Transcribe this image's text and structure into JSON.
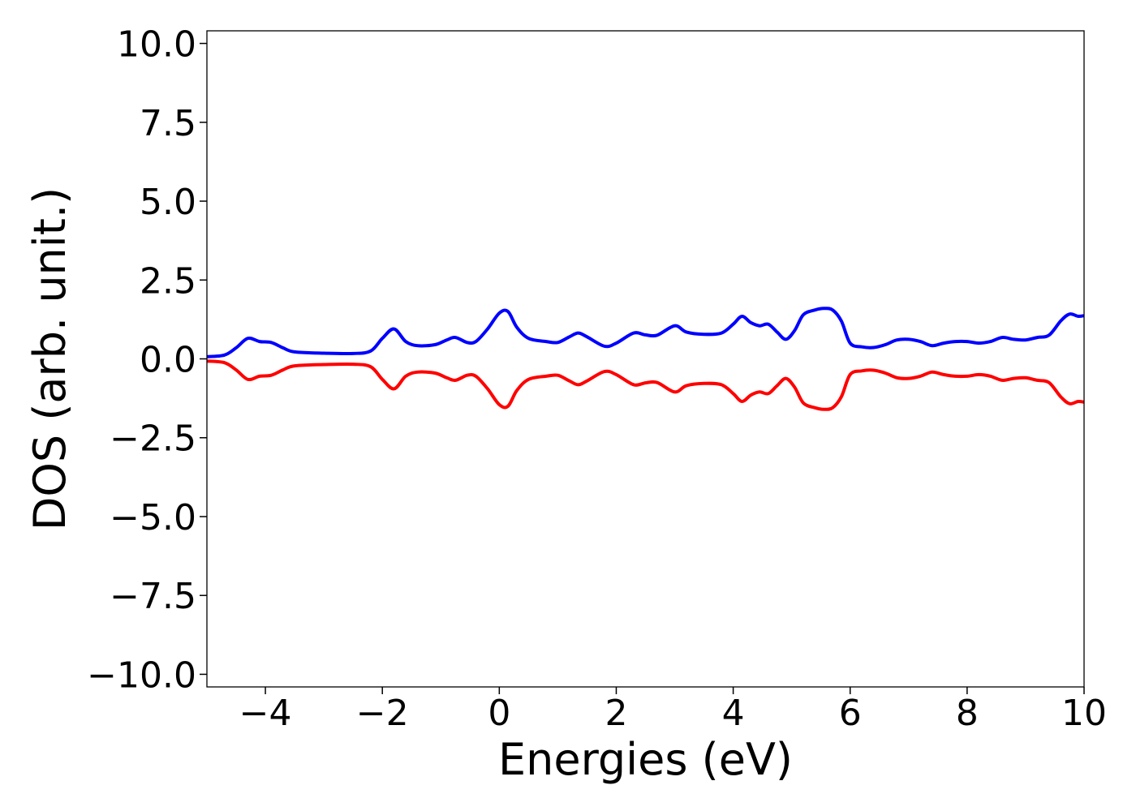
{
  "chart_data": {
    "type": "line",
    "title": "",
    "xlabel": "Energies (eV)",
    "ylabel": "DOS (arb. unit.)",
    "xlim": [
      -5,
      10
    ],
    "ylim": [
      -10.4,
      10.4
    ],
    "x_ticks": [
      -4,
      -2,
      0,
      2,
      4,
      6,
      8,
      10
    ],
    "x_tick_labels": [
      "−4",
      "−2",
      "0",
      "2",
      "4",
      "6",
      "8",
      "10"
    ],
    "y_ticks": [
      10.0,
      7.5,
      5.0,
      2.5,
      0.0,
      -2.5,
      -5.0,
      -7.5,
      -10.0
    ],
    "y_tick_labels": [
      "10.0",
      "7.5",
      "5.0",
      "2.5",
      "0.0",
      "−2.5",
      "−5.0",
      "−7.5",
      "−10.0"
    ],
    "grid": false,
    "legend": "none",
    "series": [
      {
        "color": "#0000ff",
        "x": [
          -5.0,
          -4.7,
          -4.5,
          -4.3,
          -4.1,
          -3.9,
          -3.7,
          -3.5,
          -3.0,
          -2.5,
          -2.2,
          -2.0,
          -1.8,
          -1.6,
          -1.4,
          -1.1,
          -0.9,
          -0.75,
          -0.55,
          -0.4,
          -0.2,
          0.0,
          0.15,
          0.3,
          0.5,
          0.8,
          1.0,
          1.2,
          1.35,
          1.5,
          1.8,
          2.0,
          2.3,
          2.5,
          2.7,
          3.0,
          3.2,
          3.5,
          3.8,
          4.0,
          4.15,
          4.3,
          4.45,
          4.6,
          4.75,
          4.9,
          5.05,
          5.2,
          5.4,
          5.55,
          5.7,
          5.85,
          6.0,
          6.2,
          6.4,
          6.6,
          6.8,
          7.0,
          7.2,
          7.4,
          7.6,
          7.8,
          8.0,
          8.2,
          8.4,
          8.6,
          8.8,
          9.0,
          9.2,
          9.4,
          9.6,
          9.75,
          9.9,
          10.0
        ],
        "y": [
          0.07,
          0.12,
          0.35,
          0.65,
          0.55,
          0.52,
          0.35,
          0.22,
          0.18,
          0.17,
          0.25,
          0.65,
          0.95,
          0.55,
          0.42,
          0.45,
          0.6,
          0.68,
          0.52,
          0.55,
          0.95,
          1.45,
          1.5,
          1.0,
          0.65,
          0.55,
          0.52,
          0.7,
          0.82,
          0.7,
          0.4,
          0.5,
          0.82,
          0.76,
          0.75,
          1.05,
          0.85,
          0.78,
          0.82,
          1.1,
          1.35,
          1.15,
          1.05,
          1.1,
          0.85,
          0.62,
          0.9,
          1.4,
          1.55,
          1.6,
          1.55,
          1.2,
          0.5,
          0.38,
          0.36,
          0.45,
          0.6,
          0.62,
          0.55,
          0.42,
          0.5,
          0.55,
          0.55,
          0.5,
          0.55,
          0.68,
          0.62,
          0.6,
          0.68,
          0.75,
          1.2,
          1.42,
          1.35,
          1.37
        ]
      },
      {
        "color": "#ff0000",
        "x": [
          -5.0,
          -4.7,
          -4.5,
          -4.3,
          -4.1,
          -3.9,
          -3.7,
          -3.5,
          -3.0,
          -2.5,
          -2.2,
          -2.0,
          -1.8,
          -1.6,
          -1.4,
          -1.1,
          -0.9,
          -0.75,
          -0.55,
          -0.4,
          -0.2,
          0.0,
          0.15,
          0.3,
          0.5,
          0.8,
          1.0,
          1.2,
          1.35,
          1.5,
          1.8,
          2.0,
          2.3,
          2.5,
          2.7,
          3.0,
          3.2,
          3.5,
          3.8,
          4.0,
          4.15,
          4.3,
          4.45,
          4.6,
          4.75,
          4.9,
          5.05,
          5.2,
          5.4,
          5.55,
          5.7,
          5.85,
          6.0,
          6.2,
          6.4,
          6.6,
          6.8,
          7.0,
          7.2,
          7.4,
          7.6,
          7.8,
          8.0,
          8.2,
          8.4,
          8.6,
          8.8,
          9.0,
          9.2,
          9.4,
          9.6,
          9.75,
          9.9,
          10.0
        ],
        "y": [
          -0.07,
          -0.12,
          -0.35,
          -0.65,
          -0.55,
          -0.52,
          -0.35,
          -0.22,
          -0.18,
          -0.17,
          -0.25,
          -0.65,
          -0.95,
          -0.55,
          -0.42,
          -0.45,
          -0.6,
          -0.68,
          -0.52,
          -0.55,
          -0.95,
          -1.45,
          -1.5,
          -1.0,
          -0.65,
          -0.55,
          -0.52,
          -0.7,
          -0.82,
          -0.7,
          -0.4,
          -0.5,
          -0.82,
          -0.76,
          -0.75,
          -1.05,
          -0.85,
          -0.78,
          -0.82,
          -1.1,
          -1.35,
          -1.15,
          -1.05,
          -1.1,
          -0.85,
          -0.62,
          -0.9,
          -1.4,
          -1.55,
          -1.6,
          -1.55,
          -1.2,
          -0.5,
          -0.38,
          -0.36,
          -0.45,
          -0.6,
          -0.62,
          -0.55,
          -0.42,
          -0.5,
          -0.55,
          -0.55,
          -0.5,
          -0.55,
          -0.68,
          -0.62,
          -0.6,
          -0.68,
          -0.75,
          -1.2,
          -1.42,
          -1.35,
          -1.37
        ]
      }
    ]
  }
}
